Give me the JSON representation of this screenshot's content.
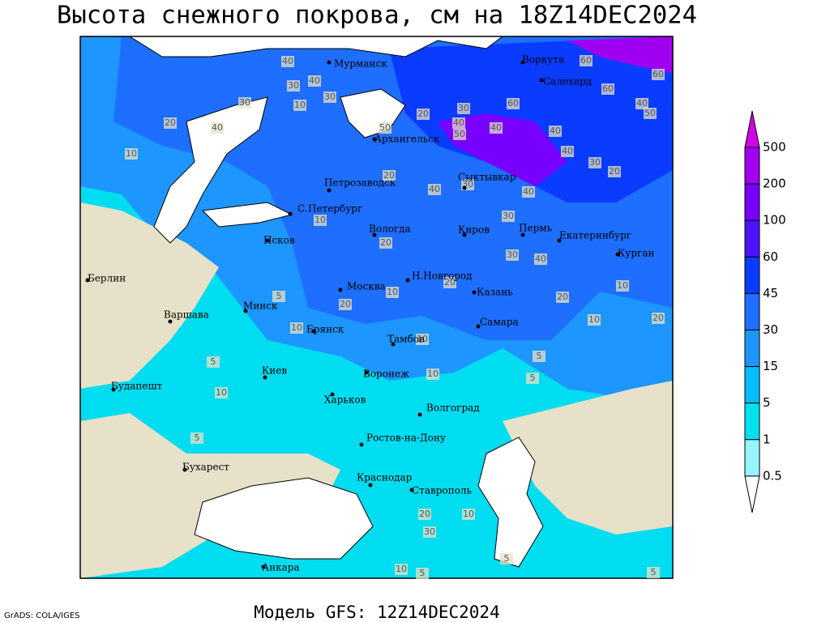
{
  "header": {
    "title": "Высота снежного покрова, см на 18Z14DEC2024"
  },
  "map": {
    "cities": [
      "Мурманск",
      "Воркута",
      "Салехард",
      "Архангельск",
      "Петрозаводск",
      "Сыктывкар",
      "С.Петербург",
      "Вологда",
      "Киров",
      "Пермь",
      "Екатеринбург",
      "Курган",
      "Псков",
      "Берлин",
      "Н.Новгород",
      "Москва",
      "Казань",
      "Минск",
      "Варшава",
      "Самара",
      "Брянск",
      "Тамбов",
      "Киев",
      "Воронеж",
      "Будапешт",
      "Харьков",
      "Волгоград",
      "Ростов-на-Дону",
      "Бухарест",
      "Краснодар",
      "Ставрополь",
      "Анкара"
    ],
    "contour_labels": [
      40,
      30,
      40,
      30,
      10,
      30,
      20,
      40,
      10,
      50,
      20,
      30,
      40,
      50,
      60,
      40,
      40,
      40,
      30,
      20,
      60,
      60,
      60,
      40,
      50,
      20,
      40,
      30,
      40,
      30,
      10,
      20,
      30,
      40,
      20,
      10,
      20,
      5,
      10,
      20,
      10,
      10,
      20,
      10,
      10,
      5,
      5,
      5,
      10,
      5,
      20,
      10,
      30,
      5,
      10,
      5,
      5
    ]
  },
  "legend": {
    "labels": [
      "500",
      "200",
      "100",
      "60",
      "45",
      "30",
      "15",
      "5",
      "1",
      "0.5"
    ],
    "colors": [
      "#d200e6",
      "#a000f0",
      "#7800ff",
      "#4b14ff",
      "#0a3cff",
      "#1e6eff",
      "#1e96ff",
      "#00beff",
      "#00e1f0",
      "#96f5ff",
      "#ffffff"
    ]
  },
  "footer": {
    "model": "Модель GFS: 12Z14DEC2024",
    "credit": "GrADS: COLA/IGES"
  }
}
